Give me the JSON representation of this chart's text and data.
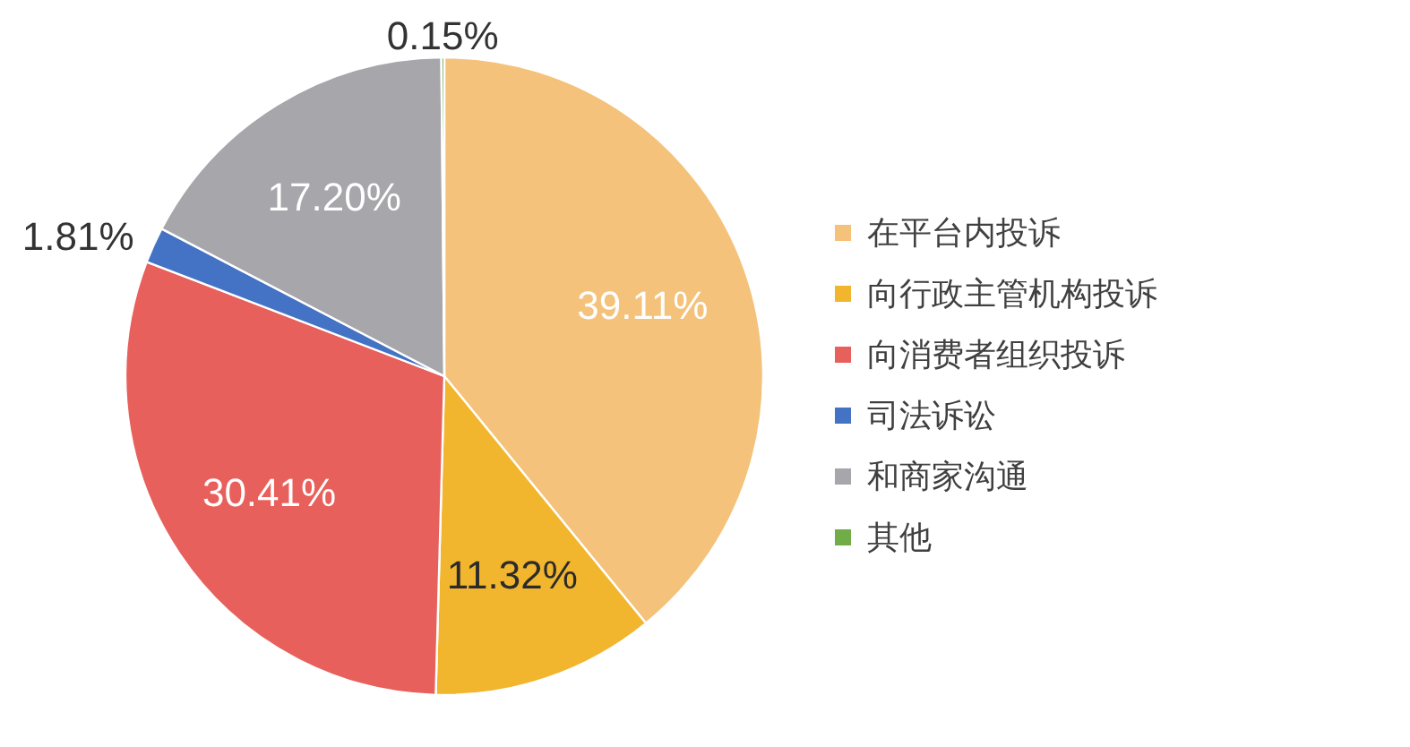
{
  "chart_data": {
    "type": "pie",
    "categories": [
      "在平台内投诉",
      "向行政主管机构投诉",
      "向消费者组织投诉",
      "司法诉讼",
      "和商家沟通",
      "其他"
    ],
    "values": [
      39.11,
      11.32,
      30.41,
      1.81,
      17.2,
      0.15
    ],
    "colors": [
      "#f4c27a",
      "#f2b52e",
      "#e8605c",
      "#4472c4",
      "#a6a6ab",
      "#70ad47"
    ],
    "value_labels": [
      "39.11%",
      "11.32%",
      "30.41%",
      "1.81%",
      "17.20%",
      "0.15%"
    ],
    "legend": "right"
  }
}
